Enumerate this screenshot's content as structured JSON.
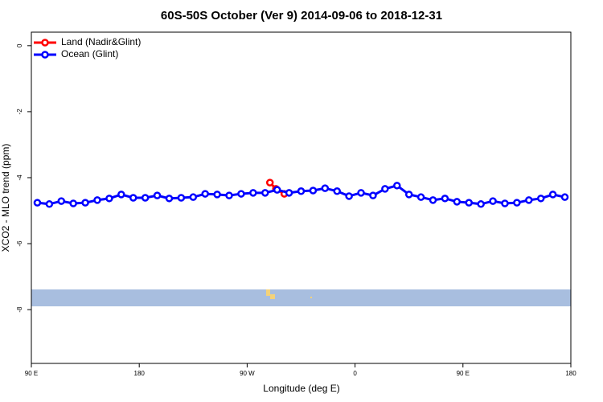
{
  "chart_data": {
    "type": "line",
    "title": "60S-50S October (Ver 9)   2014-09-06 to 2018-12-31",
    "x_label": "Longitude (deg E)",
    "y_label": "XCO2 - MLO trend (ppm)",
    "xlim": [
      90,
      540
    ],
    "ylim": [
      -9.63,
      0.41
    ],
    "xticks": [
      {
        "value": 90,
        "label": "90 E"
      },
      180,
      {
        "value": 270,
        "label": "90 W"
      },
      {
        "value": 360,
        "label": "0"
      },
      {
        "value": 450,
        "label": "90 E"
      },
      {
        "value": 540,
        "label": "180"
      }
    ],
    "yticks": [
      0,
      -2,
      -4,
      -6,
      -8
    ],
    "grid": false,
    "legend": "top-left",
    "series": [
      {
        "name": "Land (Nadir&Glint)",
        "color": "#ff0000",
        "x": [
          289,
          294,
          301
        ],
        "values": [
          -4.15,
          -4.34,
          -4.49
        ]
      },
      {
        "name": "Ocean (Glint)",
        "color": "#0000ff",
        "x": [
          95,
          105,
          115,
          125,
          135,
          145,
          155,
          165,
          175,
          185,
          195,
          205,
          215,
          225,
          235,
          245,
          255,
          265,
          275,
          285,
          295,
          305,
          315,
          325,
          335,
          345,
          355,
          365,
          375,
          385,
          395,
          405,
          415,
          425,
          435,
          445,
          455,
          465,
          475,
          485,
          495,
          505,
          515,
          525,
          535
        ],
        "values": [
          -4.76,
          -4.8,
          -4.71,
          -4.78,
          -4.76,
          -4.68,
          -4.63,
          -4.51,
          -4.61,
          -4.61,
          -4.54,
          -4.63,
          -4.61,
          -4.59,
          -4.49,
          -4.51,
          -4.54,
          -4.49,
          -4.46,
          -4.46,
          -4.37,
          -4.46,
          -4.41,
          -4.39,
          -4.32,
          -4.41,
          -4.56,
          -4.46,
          -4.54,
          -4.34,
          -4.24,
          -4.51,
          -4.59,
          -4.68,
          -4.63,
          -4.73,
          -4.76,
          -4.8,
          -4.71,
          -4.78,
          -4.76,
          -4.68,
          -4.63,
          -4.51,
          -4.59
        ]
      }
    ]
  }
}
